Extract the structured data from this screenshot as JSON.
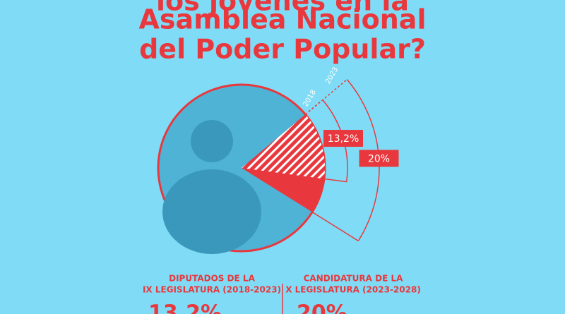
{
  "chart_data": {
    "type": "pie",
    "title_lines": [
      "los jóvenes en la",
      "Asamblea Nacional",
      "del Poder Popular?"
    ],
    "categories": [
      "2018",
      "2023"
    ],
    "values": [
      13.2,
      20
    ],
    "value_labels": [
      "13,2%",
      "20%"
    ],
    "color": "#e8383d",
    "captions": [
      [
        "DIPUTADOS DE LA",
        "IX LEGISLATURA (2018-2023)"
      ],
      [
        "CANDIDATURA DE LA",
        "X LEGISLATURA (2023-2028)"
      ]
    ]
  }
}
